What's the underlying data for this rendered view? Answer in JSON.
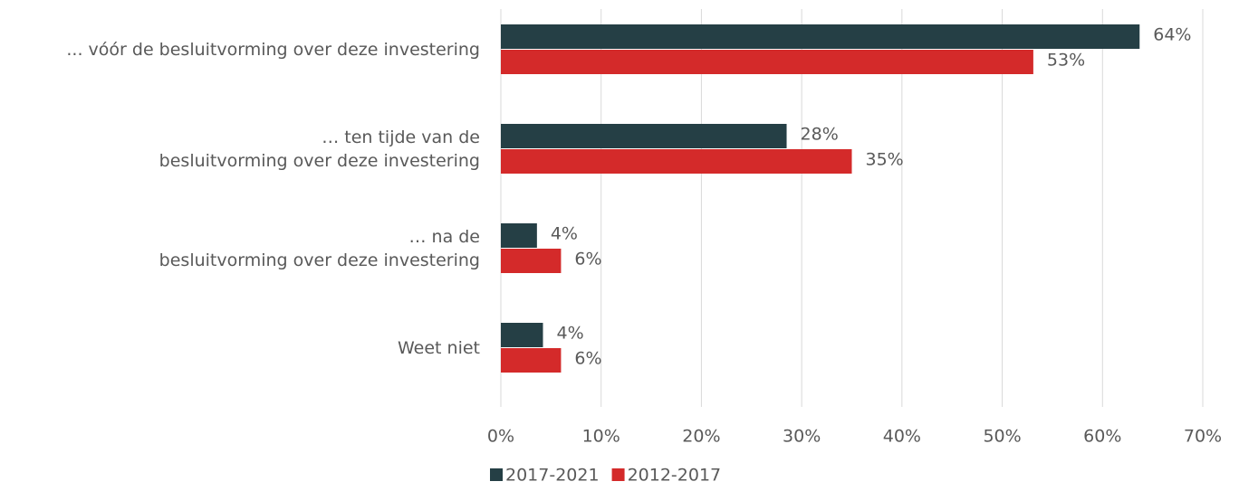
{
  "chart_data": {
    "type": "bar",
    "orientation": "horizontal",
    "categories": [
      "... vóór de besluitvorming over deze investering",
      "… ten tijde van de\nbesluitvorming over deze investering",
      "… na de\nbesluitvorming over deze investering",
      "Weet niet"
    ],
    "series": [
      {
        "name": "2017-2021",
        "color": "#253f45",
        "values": [
          63.7,
          28.5,
          3.6,
          4.2
        ],
        "value_labels": [
          "64%",
          "28%",
          "4%",
          "4%"
        ]
      },
      {
        "name": "2012-2017",
        "color": "#d42a2a",
        "values": [
          53.1,
          35,
          6,
          6
        ],
        "value_labels": [
          "53%",
          "35%",
          "6%",
          "6%"
        ]
      }
    ],
    "xlim": [
      0,
      70
    ],
    "xticks": [
      {
        "value": 0,
        "label": "0%"
      },
      {
        "value": 10,
        "label": "10%"
      },
      {
        "value": 20,
        "label": "20%"
      },
      {
        "value": 30,
        "label": "30%"
      },
      {
        "value": 40,
        "label": "40%"
      },
      {
        "value": 50,
        "label": "50%"
      },
      {
        "value": 60,
        "label": "60%"
      },
      {
        "value": 70,
        "label": "70%"
      }
    ],
    "grid": true,
    "legend": "bottom"
  }
}
